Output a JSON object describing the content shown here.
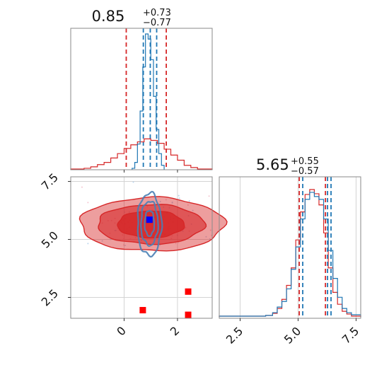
{
  "chart_data": [
    {
      "type": "histogram",
      "panel": "marginal-1",
      "title": {
        "value": "0.85",
        "upper": "+0.73",
        "lower": "−0.77"
      },
      "xlim": [
        -2,
        3.3
      ],
      "colors": {
        "red": "#d62728",
        "blue": "#1f77b4"
      },
      "quantile_lines": {
        "red": [
          0.08,
          1.58
        ],
        "blue": [
          0.72,
          0.98,
          1.22
        ]
      },
      "series": [
        {
          "color": "red",
          "bins": [
            -2,
            -1.75,
            -1.5,
            -1.25,
            -1.0,
            -0.75,
            -0.5,
            -0.25,
            0.0,
            0.25,
            0.5,
            0.75,
            1.0,
            1.25,
            1.5,
            1.75,
            2.0,
            2.25,
            2.5,
            2.75,
            3.0,
            3.3
          ],
          "values": [
            1,
            1,
            2,
            4,
            7,
            10,
            16,
            22,
            29,
            34,
            38,
            42,
            40,
            36,
            28,
            20,
            13,
            6,
            3,
            1,
            1
          ]
        },
        {
          "color": "blue",
          "bins": [
            0.3,
            0.4,
            0.5,
            0.6,
            0.7,
            0.8,
            0.9,
            1.0,
            1.1,
            1.2,
            1.3,
            1.4,
            1.5
          ],
          "values": [
            2,
            10,
            35,
            80,
            140,
            185,
            178,
            150,
            100,
            55,
            22,
            6
          ]
        }
      ]
    },
    {
      "type": "scatter",
      "panel": "joint",
      "xlim": [
        -2,
        3.3
      ],
      "ylim": [
        1.6,
        7.7
      ],
      "xticks": [
        "0",
        "2"
      ],
      "yticks": [
        "2.5",
        "5.0",
        "7.5"
      ],
      "contours": {
        "red_levels": [
          {
            "cx": 1.05,
            "cy": 5.65,
            "rx": 2.7,
            "ry": 1.15,
            "opacity": 0.45
          },
          {
            "cx": 1.0,
            "cy": 5.65,
            "rx": 2.0,
            "ry": 0.85,
            "opacity": 0.6
          },
          {
            "cx": 1.0,
            "cy": 5.65,
            "rx": 1.25,
            "ry": 0.58,
            "opacity": 0.85
          }
        ],
        "blue_levels": [
          {
            "cx": 0.95,
            "cy": 5.65,
            "rx": 0.45,
            "ry": 1.35
          },
          {
            "cx": 0.95,
            "cy": 5.7,
            "rx": 0.32,
            "ry": 0.95
          },
          {
            "cx": 0.95,
            "cy": 5.7,
            "rx": 0.18,
            "ry": 0.55
          }
        ]
      },
      "markers": [
        {
          "color": "blue",
          "x": 0.95,
          "y": 5.85
        },
        {
          "color": "red",
          "x": 0.7,
          "y": 1.95
        },
        {
          "color": "red",
          "x": 2.4,
          "y": 2.75
        },
        {
          "color": "red",
          "x": 2.4,
          "y": 1.75
        }
      ]
    },
    {
      "type": "histogram",
      "panel": "marginal-2",
      "title": {
        "value": "5.65",
        "upper": "+0.55",
        "lower": "−0.57"
      },
      "xlim": [
        1.6,
        7.7
      ],
      "xticks": [
        "2.5",
        "5.0",
        "7.5"
      ],
      "quantile_lines": {
        "red": [
          5.05,
          6.18
        ],
        "blue": [
          5.2,
          6.27,
          6.42
        ]
      },
      "series": [
        {
          "color": "red",
          "bins": [
            1.6,
            3.6,
            3.9,
            4.1,
            4.3,
            4.5,
            4.7,
            4.9,
            5.1,
            5.3,
            5.5,
            5.7,
            5.9,
            6.1,
            6.3,
            6.5,
            6.7,
            6.9,
            7.1,
            7.3,
            7.7
          ],
          "values": [
            1,
            2,
            5,
            12,
            25,
            45,
            70,
            110,
            150,
            175,
            182,
            176,
            160,
            120,
            70,
            35,
            18,
            8,
            4,
            1
          ]
        },
        {
          "color": "blue",
          "bins": [
            1.6,
            3.6,
            3.9,
            4.1,
            4.3,
            4.5,
            4.7,
            4.9,
            5.1,
            5.3,
            5.5,
            5.7,
            5.9,
            6.1,
            6.3,
            6.5,
            6.7,
            6.9,
            7.1,
            7.3,
            7.7
          ],
          "values": [
            1,
            2,
            6,
            14,
            22,
            40,
            68,
            100,
            140,
            168,
            178,
            172,
            168,
            140,
            95,
            55,
            28,
            12,
            6,
            3
          ]
        }
      ]
    }
  ]
}
